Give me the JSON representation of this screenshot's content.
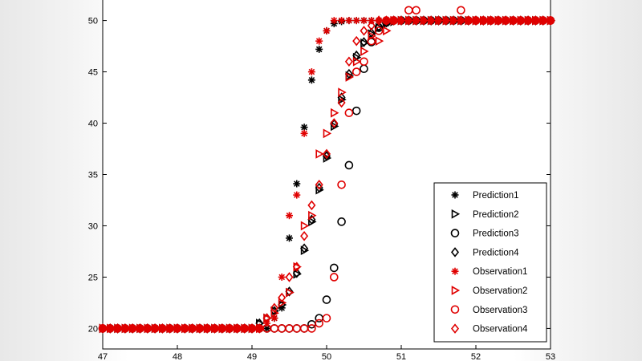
{
  "chart_data": {
    "type": "scatter",
    "title": "",
    "xlabel": "",
    "ylabel": "",
    "xlim": [
      47,
      53
    ],
    "ylim": [
      18,
      52
    ],
    "xticks": [
      47,
      48,
      49,
      50,
      51,
      52,
      53
    ],
    "yticks": [
      20,
      25,
      30,
      35,
      40,
      45,
      50
    ],
    "grid": false,
    "legend_position": "lower-right",
    "series": [
      {
        "name": "Prediction1",
        "marker": "asterisk",
        "color": "#000000",
        "points": [
          [
            49.3,
            21.0
          ],
          [
            49.4,
            22.0
          ],
          [
            49.5,
            28.8
          ],
          [
            49.6,
            34.1
          ],
          [
            49.7,
            39.6
          ],
          [
            49.8,
            44.2
          ],
          [
            49.9,
            47.2
          ],
          [
            50.0,
            49.0
          ],
          [
            50.1,
            49.7
          ],
          [
            50.2,
            49.9
          ],
          [
            50.3,
            50.0
          ],
          [
            50.4,
            50.0
          ],
          [
            50.5,
            50.0
          ],
          [
            50.6,
            50.0
          ],
          [
            50.7,
            50.0
          ],
          [
            50.8,
            50.0
          ],
          [
            50.9,
            50.0
          ],
          [
            51.0,
            50.0
          ]
        ]
      },
      {
        "name": "Prediction2",
        "marker": "triangle-right",
        "color": "#000000",
        "points": [
          [
            49.1,
            20.5
          ],
          [
            49.2,
            21.0
          ],
          [
            49.3,
            21.7
          ],
          [
            49.4,
            22.3
          ],
          [
            49.5,
            23.5
          ],
          [
            49.6,
            25.3
          ],
          [
            49.7,
            27.6
          ],
          [
            49.8,
            30.4
          ],
          [
            49.9,
            33.5
          ],
          [
            50.0,
            36.6
          ],
          [
            50.1,
            39.7
          ],
          [
            50.2,
            42.3
          ],
          [
            50.3,
            44.6
          ],
          [
            50.4,
            46.4
          ],
          [
            50.5,
            47.8
          ],
          [
            50.6,
            48.7
          ],
          [
            50.7,
            49.3
          ],
          [
            50.8,
            49.7
          ],
          [
            50.9,
            49.9
          ],
          [
            51.0,
            50.0
          ]
        ]
      },
      {
        "name": "Prediction3",
        "marker": "circle",
        "color": "#000000",
        "points": [
          [
            49.8,
            20.4
          ],
          [
            49.9,
            21.0
          ],
          [
            50.0,
            22.8
          ],
          [
            50.1,
            25.9
          ],
          [
            50.2,
            30.4
          ],
          [
            50.3,
            35.9
          ],
          [
            50.4,
            41.2
          ],
          [
            50.5,
            45.3
          ],
          [
            50.6,
            47.9
          ],
          [
            50.7,
            49.3
          ],
          [
            50.8,
            49.8
          ],
          [
            50.9,
            50.0
          ],
          [
            51.0,
            50.0
          ]
        ]
      },
      {
        "name": "Prediction4",
        "marker": "diamond",
        "color": "#000000",
        "points": [
          [
            49.1,
            20.5
          ],
          [
            49.2,
            21.0
          ],
          [
            49.3,
            21.7
          ],
          [
            49.4,
            22.3
          ],
          [
            49.5,
            23.6
          ],
          [
            49.6,
            25.4
          ],
          [
            49.7,
            27.8
          ],
          [
            49.8,
            30.6
          ],
          [
            49.9,
            33.7
          ],
          [
            50.0,
            36.8
          ],
          [
            50.1,
            39.9
          ],
          [
            50.2,
            42.5
          ],
          [
            50.3,
            44.8
          ],
          [
            50.4,
            46.6
          ],
          [
            50.5,
            47.9
          ],
          [
            50.6,
            48.8
          ],
          [
            50.7,
            49.4
          ],
          [
            50.8,
            49.8
          ],
          [
            50.9,
            50.0
          ],
          [
            51.0,
            50.0
          ]
        ]
      },
      {
        "name": "Observation1",
        "marker": "asterisk",
        "color": "#e00000",
        "points": [
          [
            49.2,
            20.5
          ],
          [
            49.3,
            21.0
          ],
          [
            49.4,
            25.0
          ],
          [
            49.5,
            31.0
          ],
          [
            49.6,
            33.0
          ],
          [
            49.7,
            39.0
          ],
          [
            49.8,
            45.0
          ],
          [
            49.9,
            48.0
          ],
          [
            50.0,
            49.0
          ],
          [
            50.1,
            50.0
          ],
          [
            50.2,
            50.0
          ],
          [
            50.3,
            50.0
          ],
          [
            50.4,
            50.0
          ],
          [
            50.5,
            50.0
          ],
          [
            50.6,
            50.0
          ],
          [
            50.7,
            50.0
          ],
          [
            50.8,
            50.0
          ],
          [
            50.9,
            50.0
          ],
          [
            51.0,
            50.0
          ]
        ]
      },
      {
        "name": "Observation2",
        "marker": "triangle-right",
        "color": "#e00000",
        "points": [
          [
            49.2,
            21.0
          ],
          [
            49.3,
            21.5
          ],
          [
            49.4,
            22.5
          ],
          [
            49.5,
            23.5
          ],
          [
            49.6,
            26.0
          ],
          [
            49.7,
            30.0
          ],
          [
            49.8,
            31.0
          ],
          [
            49.9,
            37.0
          ],
          [
            50.0,
            39.0
          ],
          [
            50.1,
            41.0
          ],
          [
            50.2,
            43.0
          ],
          [
            50.3,
            44.5
          ],
          [
            50.4,
            46.0
          ],
          [
            50.5,
            47.0
          ],
          [
            50.6,
            48.5
          ],
          [
            50.7,
            48.0
          ],
          [
            50.8,
            49.0
          ],
          [
            50.9,
            50.0
          ],
          [
            51.0,
            50.0
          ]
        ]
      },
      {
        "name": "Observation3",
        "marker": "circle",
        "color": "#e00000",
        "points": [
          [
            49.3,
            20.0
          ],
          [
            49.4,
            20.0
          ],
          [
            49.5,
            20.0
          ],
          [
            49.6,
            20.0
          ],
          [
            49.7,
            20.0
          ],
          [
            49.8,
            20.0
          ],
          [
            49.9,
            20.5
          ],
          [
            50.0,
            21.0
          ],
          [
            50.1,
            25.0
          ],
          [
            50.2,
            34.0
          ],
          [
            50.3,
            41.0
          ],
          [
            50.4,
            45.0
          ],
          [
            50.5,
            46.0
          ],
          [
            50.6,
            48.0
          ],
          [
            50.7,
            49.0
          ],
          [
            50.8,
            50.0
          ],
          [
            50.9,
            50.0
          ],
          [
            51.1,
            51.0
          ],
          [
            51.2,
            51.0
          ],
          [
            51.8,
            51.0
          ]
        ]
      },
      {
        "name": "Observation4",
        "marker": "diamond",
        "color": "#e00000",
        "points": [
          [
            49.2,
            21.0
          ],
          [
            49.3,
            22.0
          ],
          [
            49.4,
            23.0
          ],
          [
            49.5,
            25.0
          ],
          [
            49.6,
            26.0
          ],
          [
            49.7,
            29.0
          ],
          [
            49.8,
            32.0
          ],
          [
            49.9,
            34.0
          ],
          [
            50.0,
            37.0
          ],
          [
            50.1,
            40.0
          ],
          [
            50.2,
            42.0
          ],
          [
            50.3,
            46.0
          ],
          [
            50.4,
            48.0
          ],
          [
            50.5,
            49.0
          ],
          [
            50.6,
            49.5
          ],
          [
            50.7,
            50.0
          ],
          [
            50.8,
            50.0
          ],
          [
            50.9,
            50.0
          ],
          [
            51.0,
            50.0
          ]
        ]
      }
    ]
  }
}
